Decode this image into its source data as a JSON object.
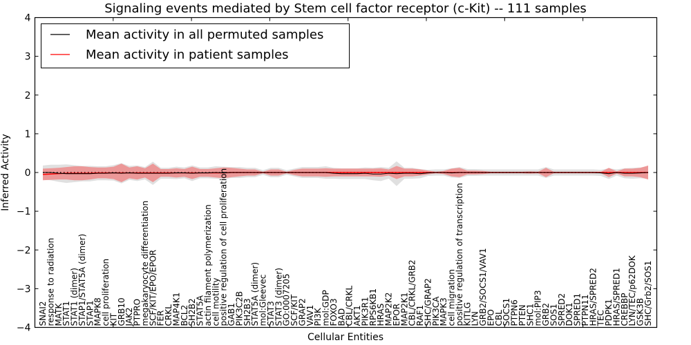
{
  "chart_data": {
    "type": "line",
    "title": "Signaling events mediated by Stem cell factor receptor (c-Kit) -- 111 samples",
    "xlabel": "Cellular Entities",
    "ylabel": "Inferred Activity",
    "ylim": [
      -4,
      4
    ],
    "yticks": [
      -4,
      -3,
      -2,
      -1,
      0,
      1,
      2,
      3,
      4
    ],
    "ytick_labels": [
      "−4",
      "−3",
      "−2",
      "−1",
      "0",
      "1",
      "2",
      "3",
      "4"
    ],
    "grid": false,
    "legend": {
      "placement": "top-left",
      "entries": [
        {
          "label": "Mean activity in all permuted samples",
          "color": "#000000"
        },
        {
          "label": "Mean activity in patient samples",
          "color": "#ff0000"
        }
      ]
    },
    "colors": {
      "patient_line": "#ff0000",
      "patient_band": "#f08080",
      "permuted_line": "#000000",
      "permuted_band": "#cccccc"
    },
    "categories": [
      "SNAI2",
      "response to radiation",
      "MATK",
      "STAT1",
      "STAT1 (dimer)",
      "STAP1/STAT5A (dimer)",
      "STAP1",
      "MAPK8",
      "cell proliferation",
      "KIT",
      "GRB10",
      "JAK2",
      "PTPRO",
      "megakaryocyte differentiation",
      "SCF/KIT/EPO/EPOR",
      "FER",
      "CRKL",
      "MAP4K1",
      "BCL2",
      "SH2B2",
      "STAT5A",
      "actin filament polymerization",
      "cell motility",
      "positive regulation of cell proliferation",
      "GAB1",
      "PIK3C2B",
      "SH2B3",
      "STAT5A (dimer)",
      "mol:Gleevec",
      "STAT3",
      "STAT3 (dimer)",
      "GO:0007205",
      "SCF/KIT",
      "GRAP2",
      "VAV1",
      "PI3K",
      "mol:GDP",
      "FOXO3",
      "BAD",
      "CBL/CRKL",
      "AKT1",
      "PIK3R1",
      "RPS6KB1",
      "HRAS",
      "MAP2K2",
      "EPOR",
      "MAP2K1",
      "CBL/CRKL/GRB2",
      "RAF1",
      "SHC/GRAP2",
      "PIK3CA",
      "MAPK3",
      "cell migration",
      "positive regulation of transcription",
      "KITLG",
      "LYN",
      "GRB2/SOCS1/VAV1",
      "EPO",
      "CBL",
      "SOCS1",
      "PTPN6",
      "PTEN",
      "SHC1",
      "mol:PIP3",
      "GRB2",
      "SOS1",
      "SPRED2",
      "DOK1",
      "SPRED1",
      "PTPN11",
      "HRAS/SPRED2",
      "TEC",
      "PDPK1",
      "HRAS/SPRED1",
      "CREBBP",
      "LYN/TEC/p62DOK",
      "GSK3B",
      "SHC/Grb2/SOS1"
    ],
    "series": [
      {
        "name": "Mean activity in patient samples",
        "values": [
          -0.05,
          -0.04,
          -0.03,
          -0.02,
          -0.02,
          -0.02,
          -0.02,
          -0.01,
          -0.01,
          -0.01,
          -0.01,
          -0.01,
          -0.01,
          -0.01,
          -0.01,
          -0.01,
          -0.01,
          -0.01,
          -0.01,
          -0.01,
          -0.01,
          -0.01,
          -0.01,
          -0.01,
          0.0,
          0.0,
          0.0,
          0.0,
          0.0,
          0.0,
          0.0,
          0.0,
          0.0,
          0.0,
          0.0,
          0.0,
          0.0,
          0.0,
          0.0,
          0.0,
          0.0,
          0.0,
          0.0,
          0.0,
          0.0,
          0.0,
          0.0,
          0.0,
          0.0,
          0.0,
          0.0,
          0.0,
          0.0,
          0.0,
          0.0,
          0.0,
          0.0,
          0.0,
          0.0,
          0.0,
          0.0,
          0.0,
          0.0,
          0.0,
          0.0,
          0.0,
          0.0,
          0.0,
          0.0,
          0.0,
          0.0,
          0.0,
          0.0,
          0.0,
          0.0,
          0.0,
          0.0,
          0.0
        ],
        "std": [
          0.15,
          0.15,
          0.15,
          0.16,
          0.18,
          0.18,
          0.16,
          0.14,
          0.14,
          0.16,
          0.24,
          0.14,
          0.17,
          0.12,
          0.24,
          0.1,
          0.1,
          0.12,
          0.1,
          0.16,
          0.1,
          0.1,
          0.12,
          0.14,
          0.12,
          0.1,
          0.08,
          0.08,
          0.02,
          0.08,
          0.08,
          0.02,
          0.07,
          0.1,
          0.1,
          0.1,
          0.11,
          0.1,
          0.1,
          0.1,
          0.1,
          0.1,
          0.1,
          0.11,
          0.08,
          0.17,
          0.1,
          0.1,
          0.08,
          0.05,
          0.02,
          0.04,
          0.1,
          0.12,
          0.05,
          0.05,
          0.04,
          0.02,
          0.02,
          0.02,
          0.02,
          0.02,
          0.03,
          0.02,
          0.12,
          0.02,
          0.02,
          0.02,
          0.02,
          0.02,
          0.02,
          0.02,
          0.12,
          0.03,
          0.1,
          0.1,
          0.12,
          0.18
        ]
      },
      {
        "name": "Mean activity in all permuted samples",
        "values": [
          0.0,
          0.0,
          -0.02,
          -0.03,
          -0.03,
          -0.03,
          -0.03,
          -0.02,
          -0.02,
          -0.01,
          -0.02,
          -0.01,
          -0.02,
          -0.02,
          -0.02,
          -0.02,
          -0.02,
          -0.01,
          -0.01,
          -0.02,
          -0.01,
          -0.01,
          0.0,
          -0.01,
          0.0,
          0.0,
          0.0,
          0.0,
          0.0,
          0.0,
          0.0,
          0.0,
          0.0,
          0.0,
          0.0,
          0.0,
          0.0,
          -0.02,
          -0.03,
          -0.03,
          -0.03,
          -0.02,
          -0.04,
          -0.04,
          -0.02,
          -0.03,
          -0.02,
          -0.02,
          -0.03,
          -0.01,
          0.0,
          0.0,
          -0.01,
          0.0,
          0.0,
          0.0,
          0.0,
          0.0,
          0.0,
          0.0,
          0.0,
          0.0,
          0.0,
          0.0,
          0.0,
          0.0,
          0.0,
          0.0,
          0.0,
          0.0,
          0.0,
          -0.01,
          -0.03,
          0.0,
          -0.02,
          -0.02,
          -0.01,
          0.0
        ],
        "std": [
          0.18,
          0.2,
          0.22,
          0.24,
          0.22,
          0.2,
          0.2,
          0.18,
          0.18,
          0.2,
          0.26,
          0.18,
          0.2,
          0.16,
          0.3,
          0.14,
          0.14,
          0.16,
          0.14,
          0.2,
          0.14,
          0.14,
          0.16,
          0.16,
          0.14,
          0.14,
          0.12,
          0.12,
          0.06,
          0.12,
          0.12,
          0.06,
          0.1,
          0.14,
          0.14,
          0.14,
          0.16,
          0.14,
          0.14,
          0.14,
          0.14,
          0.15,
          0.16,
          0.18,
          0.14,
          0.32,
          0.14,
          0.14,
          0.12,
          0.08,
          0.08,
          0.08,
          0.12,
          0.14,
          0.09,
          0.09,
          0.08,
          0.08,
          0.08,
          0.08,
          0.08,
          0.08,
          0.08,
          0.08,
          0.14,
          0.08,
          0.08,
          0.08,
          0.08,
          0.08,
          0.08,
          0.08,
          0.14,
          0.08,
          0.13,
          0.14,
          0.14,
          0.16
        ]
      }
    ]
  }
}
